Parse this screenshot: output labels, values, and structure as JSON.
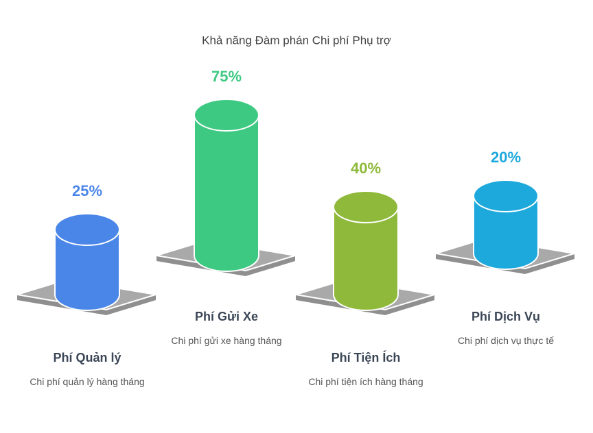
{
  "chart_data": {
    "type": "bar",
    "title": "Khả năng Đàm phán Chi phí Phụ trợ",
    "categories": [
      "Phí Quản lý",
      "Phí Gửi Xe",
      "Phí Tiện Ích",
      "Phí Dịch Vụ"
    ],
    "descriptions": [
      "Chi phí quản lý hàng tháng",
      "Chi phí gửi xe hàng tháng",
      "Chi phí tiện ích hàng tháng",
      "Chi phí dịch vụ thực tế"
    ],
    "values": [
      25,
      75,
      40,
      20
    ],
    "value_labels": [
      "25%",
      "75%",
      "40%",
      "20%"
    ],
    "colors": [
      "#4a86e8",
      "#3ec982",
      "#8fb93a",
      "#1ea9dc"
    ]
  }
}
